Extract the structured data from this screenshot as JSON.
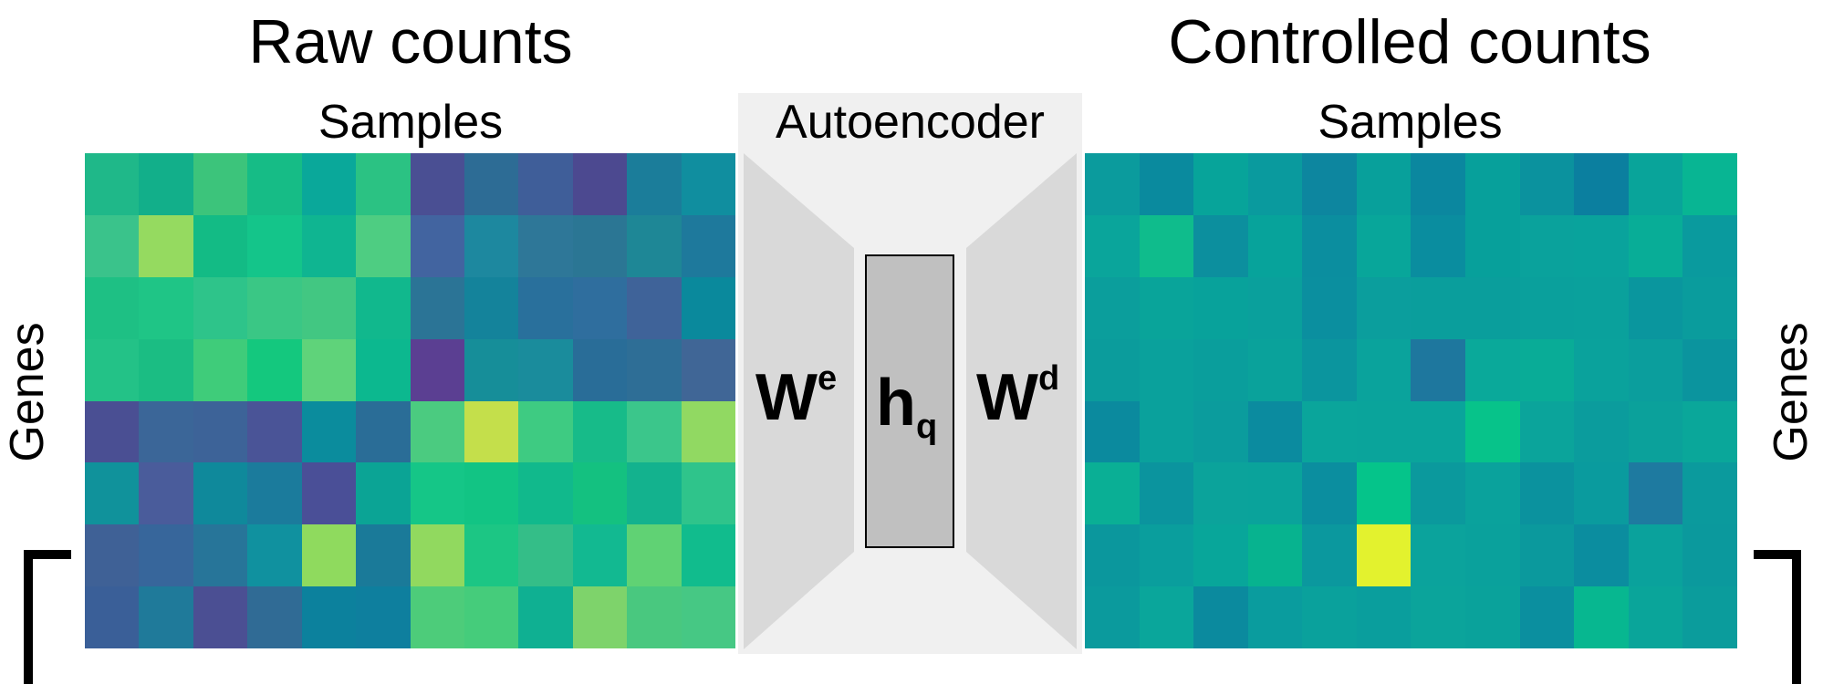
{
  "left_panel": {
    "title": "Raw counts",
    "columns_label": "Samples",
    "rows_label": "Genes",
    "cells": [
      [
        "#1fb889",
        "#12af8a",
        "#3cc47b",
        "#16bc86",
        "#0aa89a",
        "#2bc283",
        "#4a4f93",
        "#2d6c95",
        "#3f5e99",
        "#4c4990",
        "#1b7d9a",
        "#108e9f"
      ],
      [
        "#3ac38b",
        "#95da60",
        "#13bb85",
        "#14c58a",
        "#0fb591",
        "#4ecd82",
        "#4264a0",
        "#1d889f",
        "#2e7798",
        "#2b7694",
        "#1e8796",
        "#1e799c"
      ],
      [
        "#1ec084",
        "#1fc586",
        "#2ec48a",
        "#3ac785",
        "#42c782",
        "#11b88d",
        "#2b7496",
        "#14839b",
        "#29709c",
        "#2f6e9e",
        "#3f6399",
        "#0a899c"
      ],
      [
        "#23c287",
        "#1bbd83",
        "#3fcc7a",
        "#14c87e",
        "#5fd37a",
        "#0cb88f",
        "#5b3f92",
        "#168e99",
        "#1a8c9c",
        "#296d98",
        "#2e6e96",
        "#406696"
      ],
      [
        "#4a4f93",
        "#3b6698",
        "#3d6398",
        "#4a5497",
        "#0b8c9d",
        "#2a6d97",
        "#4bcb80",
        "#c4df4b",
        "#3ecb82",
        "#17bb89",
        "#3bc68b",
        "#91d962"
      ],
      [
        "#10929b",
        "#4a5c9b",
        "#0f899b",
        "#1b7b9c",
        "#4a4f97",
        "#0ba495",
        "#15c687",
        "#12c484",
        "#11b98c",
        "#14c180",
        "#13b28e",
        "#2fc48b"
      ],
      [
        "#3f6196",
        "#37669b",
        "#277599",
        "#10919f",
        "#8fda5e",
        "#1a7a99",
        "#91d95f",
        "#1cc684",
        "#34be88",
        "#12b991",
        "#60d274",
        "#11bc8d"
      ],
      [
        "#3a5f98",
        "#1f7a9a",
        "#4b4f93",
        "#306b95",
        "#0c819d",
        "#0e7f9e",
        "#4dcc7a",
        "#45cc7b",
        "#0fb092",
        "#7ed36b",
        "#49c87f",
        "#46c884"
      ]
    ]
  },
  "autoencoder": {
    "label": "Autoencoder",
    "encoder_label": "W",
    "encoder_sup": "e",
    "latent_label": "h",
    "latent_sub": "q",
    "decoder_label": "W",
    "decoder_sup": "d",
    "bg_color": "#f0f0f0",
    "trap_color": "#d9d9d9",
    "latent_color": "#c0c0c0"
  },
  "right_panel": {
    "title": "Controlled counts",
    "columns_label": "Samples",
    "rows_label": "Genes",
    "cells": [
      [
        "#0b9b9d",
        "#0a8a9e",
        "#07a49a",
        "#0a9a9e",
        "#0d869f",
        "#08a09b",
        "#0b879f",
        "#07a09b",
        "#0b929e",
        "#0b7f9f",
        "#09a49a",
        "#08b593"
      ],
      [
        "#0aa59b",
        "#0fbc8c",
        "#0c8f9e",
        "#07a39b",
        "#0b8e9f",
        "#08a69a",
        "#0a8d9f",
        "#07a09b",
        "#0aa29c",
        "#09a39c",
        "#08ad97",
        "#0a9a9e"
      ],
      [
        "#0b9e9c",
        "#09a49a",
        "#08a29b",
        "#0aa09c",
        "#0b8f9f",
        "#0b9e9d",
        "#0a9e9c",
        "#0a9e9c",
        "#0aa09c",
        "#0aa19c",
        "#0a969e",
        "#0a9c9d"
      ],
      [
        "#0b9c9c",
        "#0aa19c",
        "#0a9e9c",
        "#0aa29b",
        "#0b959e",
        "#0aa39c",
        "#1e779e",
        "#0aa99a",
        "#09ac97",
        "#0aa29c",
        "#0b9e9d",
        "#0b949e"
      ],
      [
        "#0b8a9e",
        "#0aa19c",
        "#0b9c9d",
        "#0b8b9f",
        "#0aa59b",
        "#0aa49b",
        "#0aa49b",
        "#07c38a",
        "#0ba49b",
        "#0b9c9d",
        "#0ba19b",
        "#0aa79a"
      ],
      [
        "#0aaf95",
        "#0b949e",
        "#0ba39b",
        "#0aa39b",
        "#0b8e9f",
        "#05c48a",
        "#0b999d",
        "#0aa29c",
        "#0b929e",
        "#0a9b9e",
        "#1e7aa0",
        "#0b9a9d"
      ],
      [
        "#0b979d",
        "#0a9e9d",
        "#08a69a",
        "#07b38f",
        "#0b989e",
        "#e3f22e",
        "#0ba39c",
        "#0aa19c",
        "#0b999d",
        "#0b8d9f",
        "#0aa29c",
        "#0b999d"
      ],
      [
        "#0b9a9d",
        "#0aa69b",
        "#0b8a9e",
        "#0a9c9e",
        "#0aa19c",
        "#0a9e9d",
        "#0ba49b",
        "#0aa29b",
        "#0b8f9f",
        "#07b790",
        "#0aa59a",
        "#0b9c9c"
      ]
    ]
  }
}
